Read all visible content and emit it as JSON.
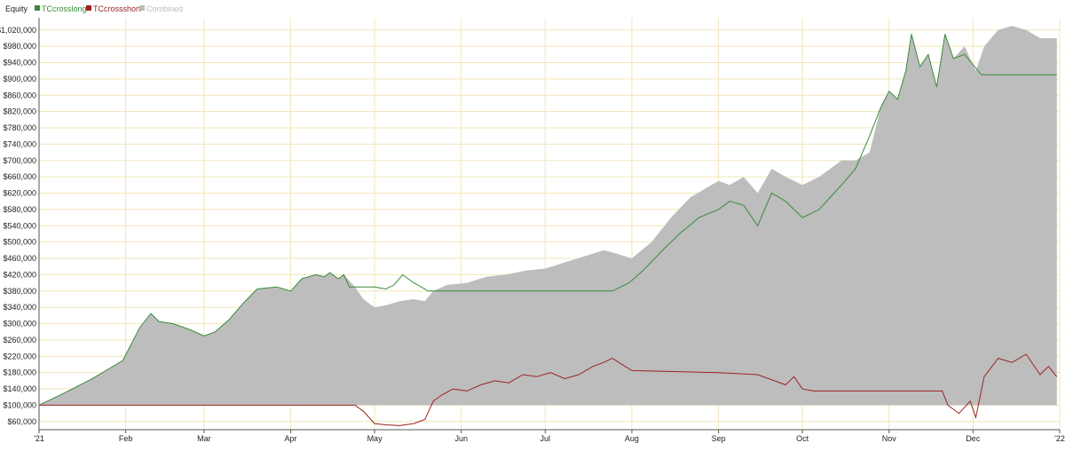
{
  "legend": {
    "title": "Equity",
    "items": [
      {
        "label": "TCcrosslong",
        "color": "#3a8a3a"
      },
      {
        "label": "TCcrossshort",
        "color": "#9b2323"
      },
      {
        "label": "Combined",
        "color": "#bdbdbd"
      }
    ]
  },
  "chart_data": {
    "type": "area",
    "title": "",
    "xlabel": "",
    "ylabel": "",
    "baseline": 100000,
    "ylim": [
      40000,
      1050000
    ],
    "grid": true,
    "legend_position": "top-left",
    "x_ticks": [
      "'21",
      "Feb",
      "Mar",
      "Apr",
      "May",
      "Jun",
      "Jul",
      "Aug",
      "Sep",
      "Oct",
      "Nov",
      "Dec",
      "'22"
    ],
    "y_ticks": [
      "$60,000",
      "$100,000",
      "$140,000",
      "$180,000",
      "$220,000",
      "$260,000",
      "$300,000",
      "$340,000",
      "$380,000",
      "$420,000",
      "$460,000",
      "$500,000",
      "$540,000",
      "$580,000",
      "$620,000",
      "$660,000",
      "$700,000",
      "$740,000",
      "$780,000",
      "$820,000",
      "$860,000",
      "$900,000",
      "$940,000",
      "$980,000",
      "$1,020,000"
    ],
    "y_tick_values": [
      60000,
      100000,
      140000,
      180000,
      220000,
      260000,
      300000,
      340000,
      380000,
      420000,
      460000,
      500000,
      540000,
      580000,
      620000,
      660000,
      700000,
      740000,
      780000,
      820000,
      860000,
      900000,
      940000,
      980000,
      1020000
    ],
    "series": [
      {
        "name": "TCcrosslong",
        "color": "#3a8a3a",
        "x": [
          "2021-01-01",
          "2021-01-10",
          "2021-01-20",
          "2021-01-31",
          "2021-02-06",
          "2021-02-10",
          "2021-02-13",
          "2021-02-18",
          "2021-02-24",
          "2021-03-01",
          "2021-03-05",
          "2021-03-10",
          "2021-03-15",
          "2021-03-20",
          "2021-03-27",
          "2021-04-01",
          "2021-04-05",
          "2021-04-10",
          "2021-04-13",
          "2021-04-15",
          "2021-04-18",
          "2021-04-20",
          "2021-04-22",
          "2021-05-01",
          "2021-05-05",
          "2021-05-08",
          "2021-05-11",
          "2021-05-15",
          "2021-05-19",
          "2021-05-20",
          "2021-07-25",
          "2021-07-31",
          "2021-08-05",
          "2021-08-12",
          "2021-08-18",
          "2021-08-25",
          "2021-09-01",
          "2021-09-05",
          "2021-09-10",
          "2021-09-15",
          "2021-09-20",
          "2021-09-25",
          "2021-10-01",
          "2021-10-07",
          "2021-10-15",
          "2021-10-20",
          "2021-10-25",
          "2021-10-29",
          "2021-11-01",
          "2021-11-04",
          "2021-11-07",
          "2021-11-09",
          "2021-11-12",
          "2021-11-15",
          "2021-11-18",
          "2021-11-21",
          "2021-11-24",
          "2021-11-28",
          "2021-12-04",
          "2021-12-31"
        ],
        "values": [
          100000,
          130000,
          165000,
          210000,
          290000,
          325000,
          305000,
          300000,
          285000,
          270000,
          280000,
          310000,
          350000,
          385000,
          390000,
          380000,
          410000,
          420000,
          415000,
          425000,
          410000,
          420000,
          390000,
          390000,
          385000,
          395000,
          420000,
          400000,
          385000,
          380000,
          380000,
          400000,
          430000,
          480000,
          520000,
          560000,
          580000,
          600000,
          590000,
          540000,
          620000,
          600000,
          560000,
          580000,
          640000,
          680000,
          760000,
          830000,
          870000,
          850000,
          920000,
          1010000,
          930000,
          960000,
          880000,
          1010000,
          950000,
          960000,
          910000,
          910000
        ]
      },
      {
        "name": "TCcrossshort",
        "color": "#9b2323",
        "x": [
          "2021-01-01",
          "2021-04-24",
          "2021-04-27",
          "2021-05-01",
          "2021-05-05",
          "2021-05-10",
          "2021-05-15",
          "2021-05-19",
          "2021-05-22",
          "2021-05-25",
          "2021-05-29",
          "2021-06-03",
          "2021-06-08",
          "2021-06-13",
          "2021-06-18",
          "2021-06-23",
          "2021-06-28",
          "2021-07-03",
          "2021-07-08",
          "2021-07-13",
          "2021-07-18",
          "2021-07-22",
          "2021-07-25",
          "2021-08-01",
          "2021-09-01",
          "2021-09-15",
          "2021-09-25",
          "2021-09-28",
          "2021-10-01",
          "2021-10-05",
          "2021-11-20",
          "2021-11-22",
          "2021-11-26",
          "2021-11-30",
          "2021-12-02",
          "2021-12-05",
          "2021-12-10",
          "2021-12-15",
          "2021-12-20",
          "2021-12-25",
          "2021-12-28",
          "2021-12-31"
        ],
        "values": [
          100000,
          100000,
          85000,
          55000,
          52000,
          50000,
          55000,
          65000,
          110000,
          125000,
          140000,
          135000,
          150000,
          160000,
          155000,
          175000,
          170000,
          180000,
          165000,
          175000,
          195000,
          205000,
          215000,
          185000,
          180000,
          175000,
          150000,
          170000,
          140000,
          135000,
          135000,
          100000,
          80000,
          110000,
          70000,
          170000,
          215000,
          205000,
          225000,
          175000,
          195000,
          170000
        ]
      },
      {
        "name": "Combined",
        "color": "#bdbdbd",
        "x": [
          "2021-01-01",
          "2021-01-10",
          "2021-01-20",
          "2021-01-31",
          "2021-02-06",
          "2021-02-10",
          "2021-02-13",
          "2021-02-18",
          "2021-02-24",
          "2021-03-01",
          "2021-03-05",
          "2021-03-10",
          "2021-03-15",
          "2021-03-20",
          "2021-03-27",
          "2021-04-01",
          "2021-04-05",
          "2021-04-10",
          "2021-04-13",
          "2021-04-15",
          "2021-04-18",
          "2021-04-20",
          "2021-04-24",
          "2021-04-27",
          "2021-05-01",
          "2021-05-05",
          "2021-05-10",
          "2021-05-15",
          "2021-05-19",
          "2021-05-22",
          "2021-05-27",
          "2021-06-03",
          "2021-06-10",
          "2021-06-17",
          "2021-06-24",
          "2021-07-01",
          "2021-07-08",
          "2021-07-15",
          "2021-07-22",
          "2021-07-25",
          "2021-08-01",
          "2021-08-08",
          "2021-08-15",
          "2021-08-22",
          "2021-09-01",
          "2021-09-05",
          "2021-09-10",
          "2021-09-15",
          "2021-09-20",
          "2021-09-25",
          "2021-10-01",
          "2021-10-07",
          "2021-10-15",
          "2021-10-20",
          "2021-10-25",
          "2021-10-29",
          "2021-11-01",
          "2021-11-04",
          "2021-11-07",
          "2021-11-09",
          "2021-11-12",
          "2021-11-15",
          "2021-11-18",
          "2021-11-21",
          "2021-11-24",
          "2021-11-28",
          "2021-12-02",
          "2021-12-05",
          "2021-12-10",
          "2021-12-15",
          "2021-12-20",
          "2021-12-25",
          "2021-12-31"
        ],
        "values": [
          100000,
          130000,
          165000,
          210000,
          290000,
          325000,
          305000,
          300000,
          285000,
          270000,
          280000,
          310000,
          350000,
          385000,
          390000,
          380000,
          410000,
          420000,
          415000,
          425000,
          410000,
          420000,
          390000,
          360000,
          340000,
          345000,
          355000,
          360000,
          355000,
          380000,
          395000,
          400000,
          415000,
          420000,
          430000,
          435000,
          450000,
          465000,
          480000,
          475000,
          460000,
          500000,
          560000,
          610000,
          650000,
          640000,
          660000,
          620000,
          680000,
          660000,
          640000,
          660000,
          700000,
          700000,
          720000,
          830000,
          870000,
          850000,
          920000,
          1010000,
          930000,
          960000,
          880000,
          1010000,
          950000,
          980000,
          920000,
          980000,
          1020000,
          1030000,
          1020000,
          1000000,
          1000000
        ]
      }
    ]
  }
}
